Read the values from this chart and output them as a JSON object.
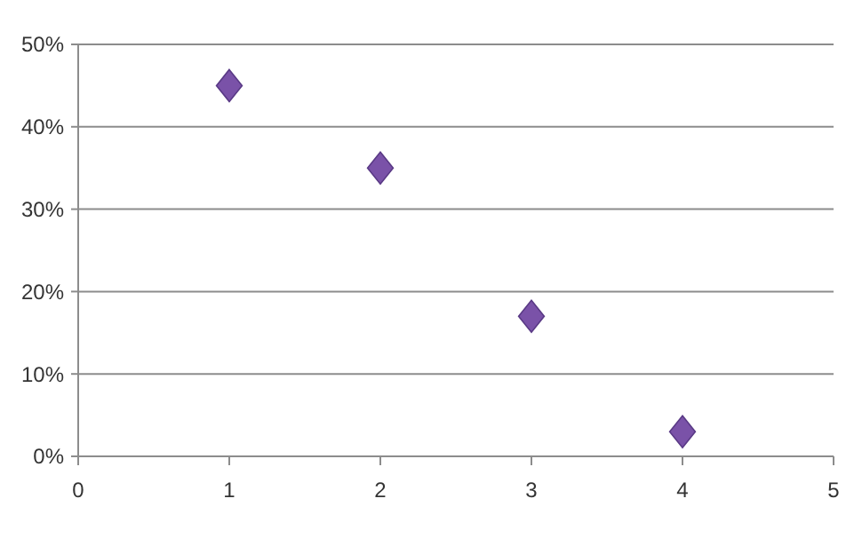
{
  "chart_data": {
    "type": "scatter",
    "x": [
      1,
      2,
      3,
      4
    ],
    "values": [
      45,
      35,
      17,
      3
    ],
    "color": "#7a52a8",
    "marker": "diamond",
    "grid": "y",
    "xlim": [
      0,
      5
    ],
    "xticks": [
      0,
      1,
      2,
      3,
      4,
      5
    ],
    "ylim": [
      0,
      50
    ],
    "yticks": [
      {
        "value": 0,
        "label": "0%"
      },
      {
        "value": 10,
        "label": "10%"
      },
      {
        "value": 20,
        "label": "20%"
      },
      {
        "value": 30,
        "label": "30%"
      },
      {
        "value": 40,
        "label": "40%"
      },
      {
        "value": 50,
        "label": "50%"
      }
    ]
  }
}
